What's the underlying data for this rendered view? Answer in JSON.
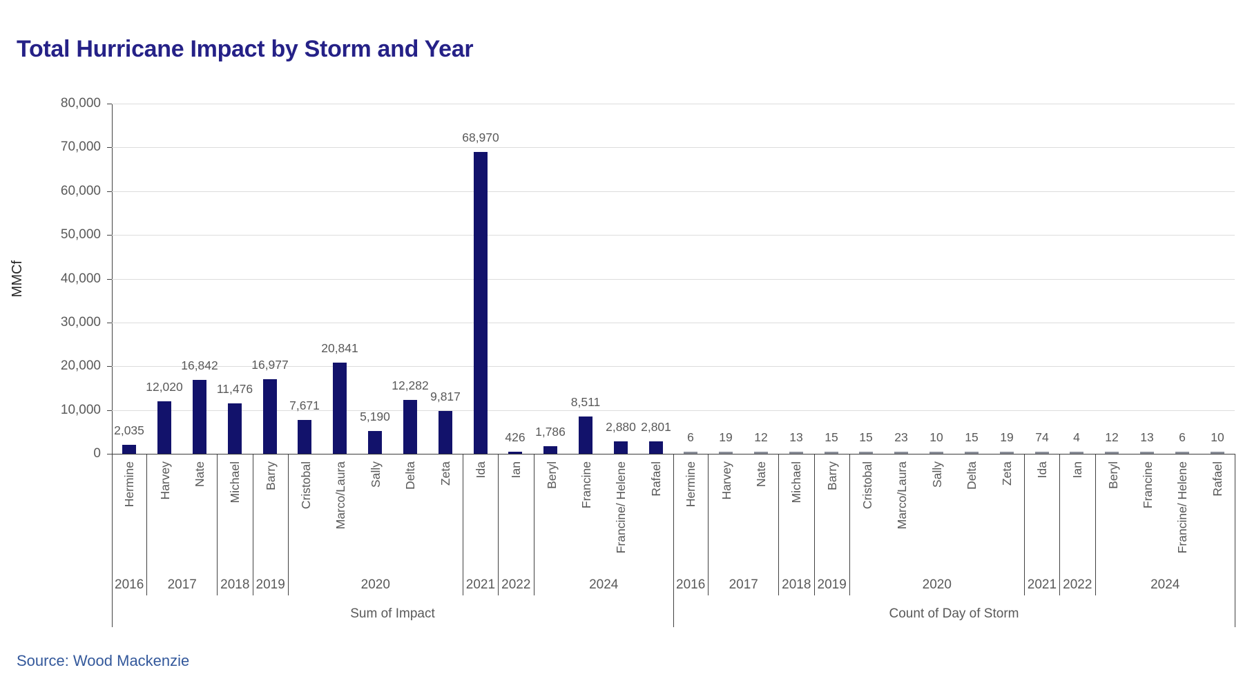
{
  "title": "Total Hurricane Impact by Storm and Year",
  "source": "Source: Wood Mackenzie",
  "chart_data": {
    "type": "bar",
    "title": "Total Hurricane Impact by Storm and Year",
    "ylabel": "MMCf",
    "ylim": [
      0,
      80000
    ],
    "ytick_step": 10000,
    "ytick_labels": [
      "80,000",
      "70,000",
      "60,000",
      "50,000",
      "40,000",
      "30,000",
      "20,000",
      "10,000",
      "0"
    ],
    "grid": "horizontal",
    "legend_position": "none",
    "bar_color": "#12126b",
    "tiny_bar_color": "#8a8e99",
    "label_color": "#595959",
    "categories": [
      "Hermine",
      "Harvey",
      "Nate",
      "Michael",
      "Barry",
      "Cristobal",
      "Marco/Laura",
      "Sally",
      "Delta",
      "Zeta",
      "Ida",
      "Ian",
      "Beryl",
      "Francine",
      "Francine/ Helene",
      "Rafael"
    ],
    "year_groups": [
      {
        "year": "2016",
        "count": 1
      },
      {
        "year": "2017",
        "count": 2
      },
      {
        "year": "2018",
        "count": 1
      },
      {
        "year": "2019",
        "count": 1
      },
      {
        "year": "2020",
        "count": 5
      },
      {
        "year": "2021",
        "count": 1
      },
      {
        "year": "2022",
        "count": 1
      },
      {
        "year": "2024",
        "count": 4
      }
    ],
    "panels": [
      {
        "name": "Sum of Impact",
        "values": [
          2035,
          12020,
          16842,
          11476,
          16977,
          7671,
          20841,
          5190,
          12282,
          9817,
          68970,
          426,
          1786,
          8511,
          2880,
          2801
        ],
        "labels": [
          "2,035",
          "12,020",
          "16,842",
          "11,476",
          "16,977",
          "7,671",
          "20,841",
          "5,190",
          "12,282",
          "9,817",
          "68,970",
          "426",
          "1,786",
          "8,511",
          "2,880",
          "2,801"
        ]
      },
      {
        "name": "Count of Day of Storm",
        "values": [
          6,
          19,
          12,
          13,
          15,
          15,
          23,
          10,
          15,
          19,
          74,
          4,
          12,
          13,
          6,
          10
        ],
        "labels": [
          "6",
          "19",
          "12",
          "13",
          "15",
          "15",
          "23",
          "10",
          "15",
          "19",
          "74",
          "4",
          "12",
          "13",
          "6",
          "10"
        ]
      }
    ]
  }
}
